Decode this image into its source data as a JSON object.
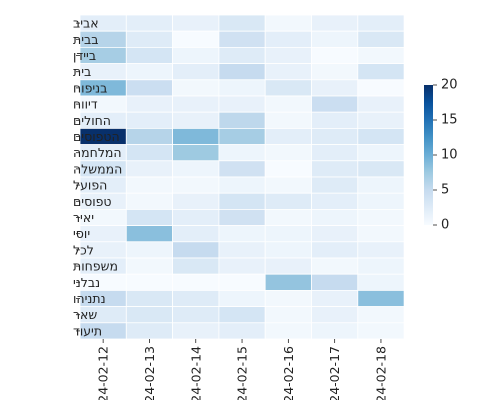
{
  "chart_data": {
    "type": "heatmap",
    "x": [
      "2024-02-12",
      "2024-02-13",
      "2024-02-14",
      "2024-02-15",
      "2024-02-16",
      "2024-02-17",
      "2024-02-18"
    ],
    "y": [
      "אביב",
      "בבית",
      "ביידן",
      "בית",
      "בניפוח",
      "דיווח",
      "החולים",
      "הטפוסים",
      "המלחמה",
      "הממשלה",
      "הפועל",
      "טפוסים",
      "יאיר",
      "יוסי",
      "לכל",
      "משפחות",
      "נבלני",
      "נתניהו",
      "שאר",
      "תיעוד"
    ],
    "values": [
      [
        2,
        2,
        1.5,
        3,
        0.5,
        1.5,
        2
      ],
      [
        6,
        2.5,
        0,
        4,
        2,
        1,
        3
      ],
      [
        7,
        3.5,
        1,
        2.5,
        1.5,
        0,
        0.5
      ],
      [
        1.5,
        1,
        2,
        5,
        1.5,
        0.5,
        3.5
      ],
      [
        9,
        4.5,
        0.5,
        1,
        3,
        1.5,
        0
      ],
      [
        0.5,
        1.5,
        1.5,
        1.5,
        0.5,
        4.5,
        1.5
      ],
      [
        2,
        2,
        1.5,
        5.5,
        0.5,
        2,
        1.5
      ],
      [
        20,
        6,
        9,
        7,
        2,
        2.5,
        3.5
      ],
      [
        2,
        3.5,
        7.5,
        1,
        0.5,
        2,
        1
      ],
      [
        3.5,
        1.5,
        1,
        4,
        0,
        2.5,
        3
      ],
      [
        2,
        0.5,
        0.5,
        1,
        0.5,
        2.5,
        1
      ],
      [
        1.5,
        0.5,
        1.5,
        3.5,
        2.5,
        2,
        1
      ],
      [
        0.5,
        3.5,
        2,
        4,
        0.5,
        1,
        0.5
      ],
      [
        1.5,
        8.5,
        2,
        1,
        1,
        1.5,
        0.5
      ],
      [
        1.5,
        1,
        5,
        1.5,
        1,
        2,
        1.5
      ],
      [
        2,
        0.5,
        3,
        1.5,
        1.5,
        0.5,
        1
      ],
      [
        0,
        0,
        0,
        0,
        8,
        5,
        1
      ],
      [
        5,
        3,
        2.5,
        1,
        0.5,
        1.5,
        8.5
      ],
      [
        2.5,
        3,
        2.5,
        3.5,
        0.5,
        1.5,
        0.5
      ],
      [
        5,
        2.5,
        1.5,
        2,
        0.5,
        1,
        0.5
      ]
    ],
    "zlim": [
      0,
      20
    ],
    "colorbar_ticks": [
      0,
      5,
      10,
      15,
      20
    ],
    "colormap": "Blues",
    "grid": true,
    "title": "",
    "xlabel": "",
    "ylabel": ""
  },
  "colors": {
    "low": "#f7fbff",
    "high": "#08306b",
    "cell_border": "#ffffff",
    "text": "#222222"
  }
}
